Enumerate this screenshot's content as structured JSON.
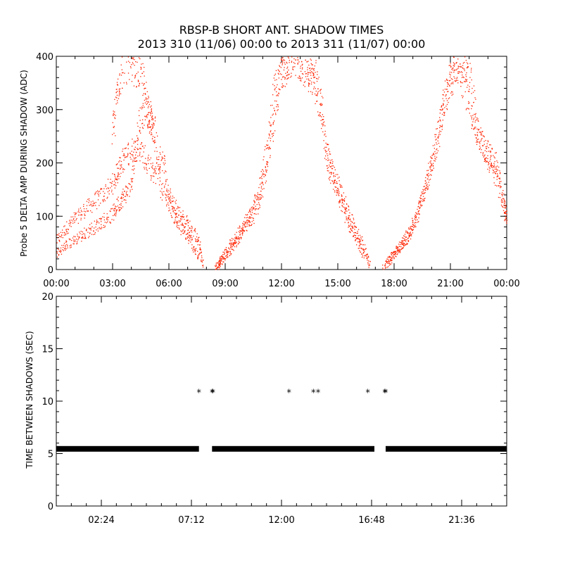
{
  "title": {
    "line1": "RBSP-B SHORT ANT. SHADOW TIMES",
    "line2": "2013 310 (11/06) 00:00 to 2013 311 (11/07) 00:00"
  },
  "colors": {
    "panel1_points": "#ff2200",
    "panel2_points": "#000000"
  },
  "chart_data": [
    {
      "type": "scatter",
      "ylabel": "Probe 5 DELTA AMP DURING SHADOW (ADC)",
      "xlabel": "",
      "x_unit": "hours",
      "xlim": [
        0,
        24
      ],
      "ylim": [
        0,
        400
      ],
      "xticks": [
        0,
        3,
        6,
        9,
        12,
        15,
        18,
        21,
        24
      ],
      "xtick_labels": [
        "00:00",
        "03:00",
        "06:00",
        "09:00",
        "12:00",
        "15:00",
        "18:00",
        "21:00",
        "00:00"
      ],
      "yticks": [
        0,
        100,
        200,
        300,
        400
      ],
      "ytick_labels": [
        "0",
        "100",
        "200",
        "300",
        "400"
      ],
      "series": [
        {
          "x": [
            0.0,
            0.5,
            1.0,
            1.5,
            2.0,
            2.5,
            3.0,
            3.3,
            3.6,
            4.0,
            4.4,
            4.8,
            5.2,
            5.6,
            6.0,
            6.4,
            6.8,
            7.2,
            7.6,
            7.8
          ],
          "y": [
            55,
            78,
            96,
            112,
            128,
            142,
            160,
            190,
            210,
            225,
            230,
            200,
            175,
            220,
            140,
            115,
            95,
            75,
            50,
            5
          ]
        },
        {
          "x": [
            0.0,
            0.5,
            1.0,
            1.5,
            2.0,
            2.5,
            3.0,
            3.3,
            3.6,
            4.0,
            4.4,
            4.8,
            5.2,
            5.6,
            6.0,
            6.4,
            6.8,
            7.2,
            7.6
          ],
          "y": [
            30,
            45,
            58,
            68,
            80,
            92,
            105,
            125,
            140,
            160,
            280,
            300,
            260,
            150,
            125,
            90,
            70,
            50,
            20
          ]
        },
        {
          "x": [
            3.0,
            3.2,
            3.5,
            4.0,
            4.2,
            4.5,
            4.8,
            5.0,
            5.2
          ],
          "y": [
            250,
            330,
            380,
            390,
            380,
            370,
            320,
            280,
            260
          ]
        },
        {
          "x": [
            8.5,
            8.8,
            9.2,
            9.6,
            10.0,
            10.4,
            10.8,
            11.2,
            11.6,
            12.0,
            12.4,
            12.8,
            13.2,
            13.6,
            14.0,
            14.4,
            14.8,
            15.2,
            15.6,
            16.0,
            16.4,
            16.7
          ],
          "y": [
            5,
            20,
            45,
            65,
            85,
            110,
            150,
            220,
            330,
            390,
            400,
            395,
            380,
            360,
            320,
            220,
            180,
            140,
            100,
            70,
            40,
            5
          ]
        },
        {
          "x": [
            8.5,
            8.8,
            9.2,
            9.6,
            10.0,
            10.4,
            10.8,
            11.2,
            11.6,
            12.0,
            12.4,
            12.8,
            13.2,
            13.6,
            14.0,
            14.4,
            14.8,
            15.2,
            15.6,
            16.0,
            16.4
          ],
          "y": [
            3,
            15,
            35,
            55,
            75,
            95,
            130,
            190,
            290,
            370,
            395,
            400,
            390,
            380,
            340,
            200,
            165,
            125,
            85,
            55,
            25
          ]
        },
        {
          "x": [
            17.4,
            17.8,
            18.2,
            18.6,
            19.0,
            19.4,
            19.8,
            20.2,
            20.6,
            21.0,
            21.4,
            21.8,
            22.2,
            22.6,
            23.0,
            23.4,
            23.8,
            24.0
          ],
          "y": [
            5,
            25,
            40,
            55,
            80,
            120,
            170,
            230,
            300,
            360,
            380,
            340,
            280,
            240,
            220,
            200,
            130,
            90
          ]
        },
        {
          "x": [
            17.6,
            18.0,
            18.4,
            18.8,
            19.2,
            19.6,
            20.0,
            20.4,
            20.8,
            21.2,
            21.6,
            22.0,
            22.4,
            22.8,
            23.2,
            23.6,
            24.0
          ],
          "y": [
            10,
            30,
            48,
            70,
            100,
            150,
            210,
            260,
            340,
            390,
            395,
            380,
            260,
            220,
            200,
            150,
            100
          ]
        }
      ]
    },
    {
      "type": "scatter",
      "ylabel": "TIME BETWEEN SHADOWS (SEC)",
      "xlabel": "",
      "x_unit": "hours",
      "xlim": [
        0,
        24
      ],
      "ylim": [
        0,
        20
      ],
      "xticks": [
        2.4,
        7.2,
        12.0,
        16.8,
        21.6
      ],
      "xtick_labels": [
        "02:24",
        "07:12",
        "12:00",
        "16:48",
        "21:36"
      ],
      "yticks": [
        0,
        5,
        10,
        15,
        20
      ],
      "ytick_labels": [
        "0",
        "5",
        "10",
        "15",
        "20"
      ],
      "baseline": {
        "y": 5.45,
        "segments": [
          [
            0.0,
            7.6
          ],
          [
            8.3,
            16.95
          ],
          [
            17.55,
            24.0
          ]
        ]
      },
      "outliers": {
        "x": [
          7.6,
          8.3,
          8.35,
          12.4,
          13.7,
          13.95,
          16.6,
          17.5,
          17.55
        ],
        "y": [
          10.9,
          10.9,
          10.9,
          10.9,
          10.9,
          10.9,
          10.9,
          10.9,
          10.9
        ]
      }
    }
  ]
}
